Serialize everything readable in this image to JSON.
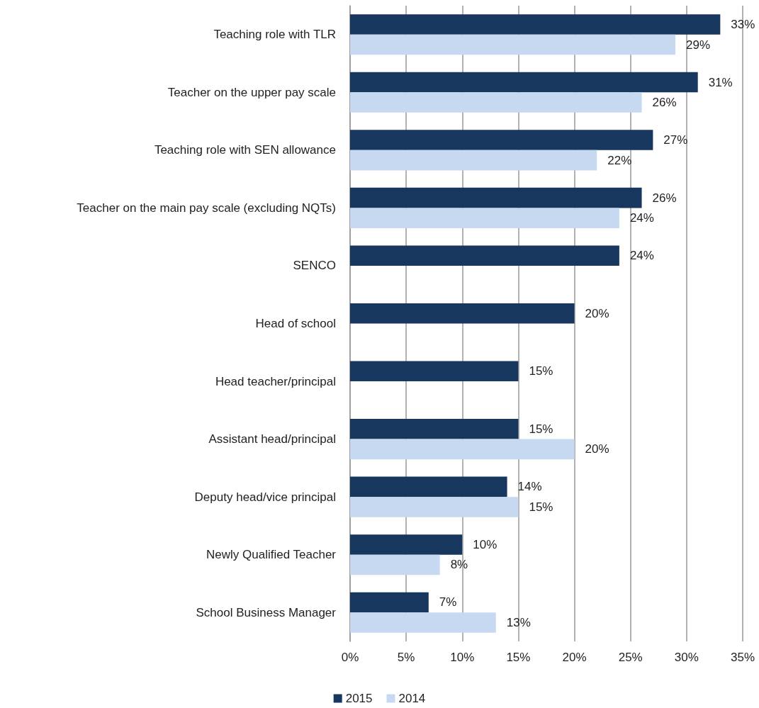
{
  "chart_data": {
    "type": "bar",
    "orientation": "horizontal",
    "categories": [
      "Teaching role with TLR",
      "Teacher on the upper pay scale",
      "Teaching role with SEN allowance",
      "Teacher on the main pay scale (excluding NQTs)",
      "SENCO",
      "Head of school",
      "Head teacher/principal",
      "Assistant head/principal",
      "Deputy head/vice principal",
      "Newly Qualified Teacher",
      "School Business Manager"
    ],
    "series": [
      {
        "name": "2015",
        "color": "#17375e",
        "values": [
          33,
          31,
          27,
          26,
          24,
          20,
          15,
          15,
          14,
          10,
          7
        ],
        "value_labels": [
          "33%",
          "31%",
          "27%",
          "26%",
          "24%",
          "20%",
          "15%",
          "15%",
          "14%",
          "10%",
          "7%"
        ]
      },
      {
        "name": "2014",
        "color": "#c6d9f1",
        "values": [
          29,
          26,
          22,
          24,
          null,
          null,
          null,
          20,
          15,
          8,
          13
        ],
        "value_labels": [
          "29%",
          "26%",
          "22%",
          "24%",
          null,
          null,
          null,
          "20%",
          "15%",
          "8%",
          "13%"
        ]
      }
    ],
    "xlim": [
      0,
      35
    ],
    "xticks": [
      {
        "value": 0,
        "label": "0%"
      },
      {
        "value": 5,
        "label": "5%"
      },
      {
        "value": 10,
        "label": "10%"
      },
      {
        "value": 15,
        "label": "15%"
      },
      {
        "value": 20,
        "label": "20%"
      },
      {
        "value": 25,
        "label": "25%"
      },
      {
        "value": 30,
        "label": "30%"
      },
      {
        "value": 35,
        "label": "35%"
      }
    ],
    "grid": "x",
    "legend": "bottom"
  }
}
